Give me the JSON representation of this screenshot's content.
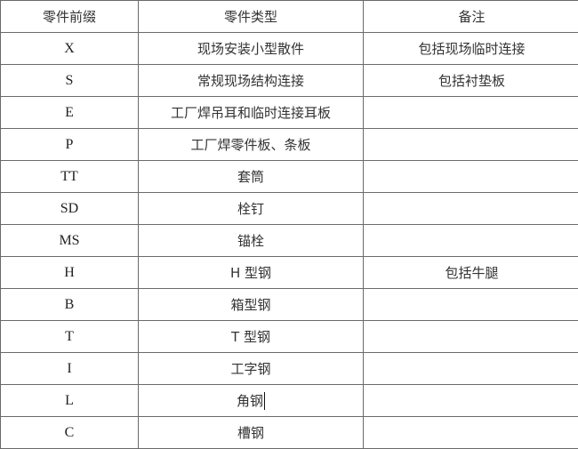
{
  "headers": [
    "零件前缀",
    "零件类型",
    "备注"
  ],
  "rows": [
    {
      "prefix": "X",
      "type": "现场安装小型散件",
      "note": "包括现场临时连接"
    },
    {
      "prefix": "S",
      "type": "常规现场结构连接",
      "note": "包括衬垫板"
    },
    {
      "prefix": "E",
      "type": "工厂焊吊耳和临时连接耳板",
      "note": ""
    },
    {
      "prefix": "P",
      "type": "工厂焊零件板、条板",
      "note": ""
    },
    {
      "prefix": "TT",
      "type": "套筒",
      "note": ""
    },
    {
      "prefix": "SD",
      "type": "栓钉",
      "note": ""
    },
    {
      "prefix": "MS",
      "type": "锚栓",
      "note": ""
    },
    {
      "prefix": "H",
      "type": "H 型钢",
      "note": "包括牛腿"
    },
    {
      "prefix": "B",
      "type": "箱型钢",
      "note": ""
    },
    {
      "prefix": "T",
      "type": "T 型钢",
      "note": ""
    },
    {
      "prefix": "I",
      "type": "工字钢",
      "note": ""
    },
    {
      "prefix": "L",
      "type": "角钢",
      "note": ""
    },
    {
      "prefix": "C",
      "type": "槽钢",
      "note": ""
    }
  ]
}
